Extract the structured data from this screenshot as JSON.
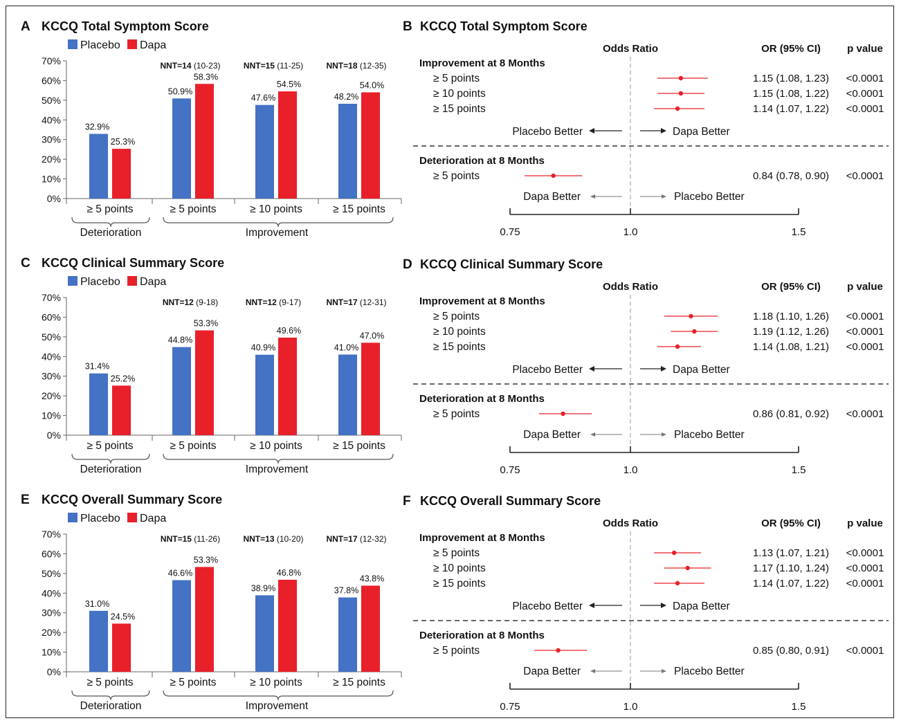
{
  "bar_charts": [
    {
      "panel": "A",
      "title": "KCCQ Total Symptom Score",
      "legend": [
        "Placebo",
        "Dapa"
      ],
      "categories": [
        "≥ 5 points",
        "≥ 5 points",
        "≥ 10 points",
        "≥ 15 points"
      ],
      "groups": [
        "Deterioration",
        "Improvement"
      ],
      "placebo": [
        32.9,
        50.9,
        47.6,
        48.2
      ],
      "dapa": [
        25.3,
        58.3,
        54.5,
        54.0
      ],
      "nnt": [
        {
          "label": "NNT=14",
          "ci": "(10-23)"
        },
        {
          "label": "NNT=15",
          "ci": "(11-25)"
        },
        {
          "label": "NNT=18",
          "ci": "(12-35)"
        }
      ],
      "yticks": [
        "0%",
        "10%",
        "20%",
        "30%",
        "40%",
        "50%",
        "60%",
        "70%"
      ]
    },
    {
      "panel": "C",
      "title": "KCCQ Clinical Summary Score",
      "legend": [
        "Placebo",
        "Dapa"
      ],
      "categories": [
        "≥ 5 points",
        "≥ 5 points",
        "≥ 10 points",
        "≥ 15 points"
      ],
      "groups": [
        "Deterioration",
        "Improvement"
      ],
      "placebo": [
        31.4,
        44.8,
        40.9,
        41.0
      ],
      "dapa": [
        25.2,
        53.3,
        49.6,
        47.0
      ],
      "nnt": [
        {
          "label": "NNT=12",
          "ci": "(9-18)"
        },
        {
          "label": "NNT=12",
          "ci": "(9-17)"
        },
        {
          "label": "NNT=17",
          "ci": "(12-31)"
        }
      ],
      "yticks": [
        "0%",
        "10%",
        "20%",
        "30%",
        "40%",
        "50%",
        "60%",
        "70%"
      ]
    },
    {
      "panel": "E",
      "title": "KCCQ Overall Summary Score",
      "legend": [
        "Placebo",
        "Dapa"
      ],
      "categories": [
        "≥ 5 points",
        "≥ 5 points",
        "≥ 10 points",
        "≥ 15 points"
      ],
      "groups": [
        "Deterioration",
        "Improvement"
      ],
      "placebo": [
        31.0,
        46.6,
        38.9,
        37.8
      ],
      "dapa": [
        24.5,
        53.3,
        46.8,
        43.8
      ],
      "nnt": [
        {
          "label": "NNT=15",
          "ci": "(11-26)"
        },
        {
          "label": "NNT=13",
          "ci": "(10-20)"
        },
        {
          "label": "NNT=17",
          "ci": "(12-32)"
        }
      ],
      "yticks": [
        "0%",
        "10%",
        "20%",
        "30%",
        "40%",
        "50%",
        "60%",
        "70%"
      ]
    }
  ],
  "forest_plots": [
    {
      "panel": "B",
      "title": "KCCQ Total Symptom Score",
      "col_or": "Odds Ratio",
      "col_ci": "OR (95% CI)",
      "col_p": "p value",
      "imp_header": "Improvement at 8 Months",
      "improvement": [
        {
          "label": "≥ 5 points",
          "or": 1.15,
          "lo": 1.08,
          "hi": 1.23,
          "text": "1.15 (1.08, 1.23)",
          "p": "<0.0001"
        },
        {
          "label": "≥ 10 points",
          "or": 1.15,
          "lo": 1.08,
          "hi": 1.22,
          "text": "1.15 (1.08, 1.22)",
          "p": "<0.0001"
        },
        {
          "label": "≥ 15 points",
          "or": 1.14,
          "lo": 1.07,
          "hi": 1.22,
          "text": "1.14 (1.07, 1.22)",
          "p": "<0.0001"
        }
      ],
      "imp_left": "Placebo Better",
      "imp_right": "Dapa Better",
      "det_header": "Deterioration at 8 Months",
      "deterioration": [
        {
          "label": "≥ 5 points",
          "or": 0.84,
          "lo": 0.78,
          "hi": 0.9,
          "text": "0.84 (0.78, 0.90)",
          "p": "<0.0001"
        }
      ],
      "det_left": "Dapa Better",
      "det_right": "Placebo Better",
      "axis_ticks": [
        {
          "value": 0.75,
          "label": "0.75"
        },
        {
          "value": 1.0,
          "label": "1.0"
        },
        {
          "value": 1.5,
          "label": "1.5"
        }
      ]
    },
    {
      "panel": "D",
      "title": "KCCQ Clinical Summary Score",
      "col_or": "Odds Ratio",
      "col_ci": "OR (95% CI)",
      "col_p": "p value",
      "imp_header": "Improvement at 8 Months",
      "improvement": [
        {
          "label": "≥ 5 points",
          "or": 1.18,
          "lo": 1.1,
          "hi": 1.26,
          "text": "1.18 (1.10, 1.26)",
          "p": "<0.0001"
        },
        {
          "label": "≥ 10 points",
          "or": 1.19,
          "lo": 1.12,
          "hi": 1.26,
          "text": "1.19 (1.12, 1.26)",
          "p": "<0.0001"
        },
        {
          "label": "≥ 15 points",
          "or": 1.14,
          "lo": 1.08,
          "hi": 1.21,
          "text": "1.14 (1.08, 1.21)",
          "p": "<0.0001"
        }
      ],
      "imp_left": "Placebo Better",
      "imp_right": "Dapa Better",
      "det_header": "Deterioration at 8 Months",
      "deterioration": [
        {
          "label": "≥ 5 points",
          "or": 0.86,
          "lo": 0.81,
          "hi": 0.92,
          "text": "0.86 (0.81, 0.92)",
          "p": "<0.0001"
        }
      ],
      "det_left": "Dapa Better",
      "det_right": "Placebo Better",
      "axis_ticks": [
        {
          "value": 0.75,
          "label": "0.75"
        },
        {
          "value": 1.0,
          "label": "1.0"
        },
        {
          "value": 1.5,
          "label": "1.5"
        }
      ]
    },
    {
      "panel": "F",
      "title": "KCCQ Overall Summary Score",
      "col_or": "Odds Ratio",
      "col_ci": "OR (95% CI)",
      "col_p": "p value",
      "imp_header": "Improvement at 8 Months",
      "improvement": [
        {
          "label": "≥ 5 points",
          "or": 1.13,
          "lo": 1.07,
          "hi": 1.21,
          "text": "1.13 (1.07, 1.21)",
          "p": "<0.0001"
        },
        {
          "label": "≥ 10 points",
          "or": 1.17,
          "lo": 1.1,
          "hi": 1.24,
          "text": "1.17 (1.10, 1.24)",
          "p": "<0.0001"
        },
        {
          "label": "≥ 15 points",
          "or": 1.14,
          "lo": 1.07,
          "hi": 1.22,
          "text": "1.14 (1.07, 1.22)",
          "p": "<0.0001"
        }
      ],
      "imp_left": "Placebo Better",
      "imp_right": "Dapa Better",
      "det_header": "Deterioration at 8 Months",
      "deterioration": [
        {
          "label": "≥ 5 points",
          "or": 0.85,
          "lo": 0.8,
          "hi": 0.91,
          "text": "0.85 (0.80, 0.91)",
          "p": "<0.0001"
        }
      ],
      "det_left": "Dapa Better",
      "det_right": "Placebo Better",
      "axis_ticks": [
        {
          "value": 0.75,
          "label": "0.75"
        },
        {
          "value": 1.0,
          "label": "1.0"
        },
        {
          "value": 1.5,
          "label": "1.5"
        }
      ]
    }
  ],
  "colors": {
    "placebo": "#4472C4",
    "dapa": "#E8202A",
    "forest": "#E8202A"
  },
  "chart_data": [
    {
      "type": "bar",
      "title": "KCCQ Total Symptom Score",
      "categories": [
        "Deterioration ≥ 5 points",
        "Improvement ≥ 5 points",
        "Improvement ≥ 10 points",
        "Improvement ≥ 15 points"
      ],
      "series": [
        {
          "name": "Placebo",
          "values": [
            32.9,
            50.9,
            47.6,
            48.2
          ]
        },
        {
          "name": "Dapa",
          "values": [
            25.3,
            58.3,
            54.5,
            54.0
          ]
        }
      ],
      "ylim": [
        0,
        70
      ]
    },
    {
      "type": "scatter",
      "title": "KCCQ Total Symptom Score",
      "xlabel": "Odds Ratio",
      "x": [
        1.15,
        1.15,
        1.14,
        0.84
      ],
      "xlim": [
        0.75,
        1.5
      ]
    },
    {
      "type": "bar",
      "title": "KCCQ Clinical Summary Score",
      "categories": [
        "Deterioration ≥ 5 points",
        "Improvement ≥ 5 points",
        "Improvement ≥ 10 points",
        "Improvement ≥ 15 points"
      ],
      "series": [
        {
          "name": "Placebo",
          "values": [
            31.4,
            44.8,
            40.9,
            41.0
          ]
        },
        {
          "name": "Dapa",
          "values": [
            25.2,
            53.3,
            49.6,
            47.0
          ]
        }
      ],
      "ylim": [
        0,
        70
      ]
    },
    {
      "type": "scatter",
      "title": "KCCQ Clinical Summary Score",
      "xlabel": "Odds Ratio",
      "x": [
        1.18,
        1.19,
        1.14,
        0.86
      ],
      "xlim": [
        0.75,
        1.5
      ]
    },
    {
      "type": "bar",
      "title": "KCCQ Overall Summary Score",
      "categories": [
        "Deterioration ≥ 5 points",
        "Improvement ≥ 5 points",
        "Improvement ≥ 10 points",
        "Improvement ≥ 15 points"
      ],
      "series": [
        {
          "name": "Placebo",
          "values": [
            31.0,
            46.6,
            38.9,
            37.8
          ]
        },
        {
          "name": "Dapa",
          "values": [
            24.5,
            53.3,
            46.8,
            43.8
          ]
        }
      ],
      "ylim": [
        0,
        70
      ]
    },
    {
      "type": "scatter",
      "title": "KCCQ Overall Summary Score",
      "xlabel": "Odds Ratio",
      "x": [
        1.13,
        1.17,
        1.14,
        0.85
      ],
      "xlim": [
        0.75,
        1.5
      ]
    }
  ]
}
